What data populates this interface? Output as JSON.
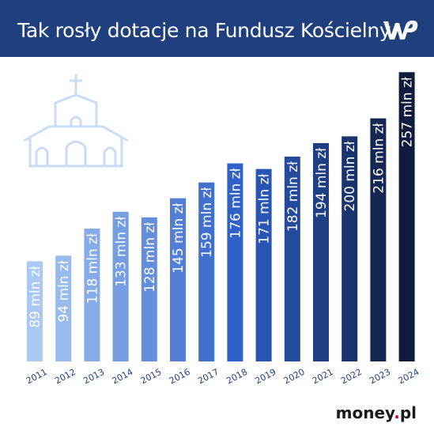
{
  "header": {
    "title": "Tak rosły dotacje na Fundusz Kościelny",
    "logo_text": "WP"
  },
  "footer": {
    "brand_main": "money",
    "brand_dot": ".",
    "brand_tld": "pl"
  },
  "colors": {
    "header_bg": "#1f3f7f",
    "bar_light": "#a9c9f3",
    "bar_dark": "#101c3d",
    "church_outline": "#c8dcf7",
    "brand_accent": "#d4004f"
  },
  "icons": [
    "church-icon",
    "wp-logo-icon"
  ],
  "chart_data": {
    "type": "bar",
    "categories": [
      "2011",
      "2012",
      "2013",
      "2014",
      "2015",
      "2016",
      "2017",
      "2018",
      "2019",
      "2020",
      "2021",
      "2022",
      "2023",
      "2024"
    ],
    "values": [
      89,
      94,
      118,
      133,
      128,
      145,
      159,
      176,
      171,
      182,
      194,
      200,
      216,
      257
    ],
    "data_labels": [
      "89 mln zł",
      "94 mln zł",
      "118 mln zł",
      "133 mln zł",
      "128 mln zł",
      "145 mln zł",
      "159 mln zł",
      "176 mln zł",
      "171 mln zł",
      "182 mln zł",
      "194 mln zł",
      "200 mln zł",
      "216 mln zł",
      "257 mln zł"
    ],
    "unit": "mln zł",
    "title": "",
    "xlabel": "",
    "ylabel": "",
    "ylim": [
      0,
      260
    ],
    "grid": false,
    "legend": "none"
  }
}
